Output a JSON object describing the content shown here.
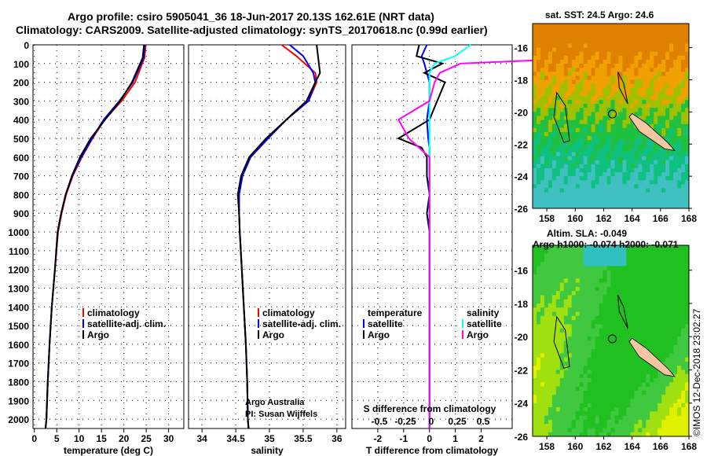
{
  "title": {
    "line1": "Argo profile: csiro 5905041_36 18-Jun-2017 20.13S 162.61E (NRT data)",
    "line2": "Climatology: CARS2009. Satellite-adjusted climatology: synTS_20170618.nc (0.99d earlier)"
  },
  "colors": {
    "climatology": "#ff0000",
    "satellite": "#0000ff",
    "argo": "#000000",
    "sal_satellite": "#00ffff",
    "sal_argo": "#ff00ff",
    "land": "#f5c6a0"
  },
  "chart_data": [
    {
      "type": "line",
      "name": "temperature",
      "xlabel": "temperature (deg C)",
      "xlim": [
        -0.3,
        33.4
      ],
      "ylim": [
        0,
        2050
      ],
      "yticks": [
        0,
        100,
        200,
        300,
        400,
        500,
        600,
        700,
        800,
        900,
        1000,
        1100,
        1200,
        1300,
        1400,
        1500,
        1600,
        1700,
        1800,
        1900,
        2000
      ],
      "xticks": [
        0,
        5,
        10,
        15,
        20,
        25,
        30
      ],
      "legend": [
        "climatology",
        "satellite-adj. clim.",
        "Argo"
      ],
      "depth": [
        0,
        70,
        200,
        300,
        400,
        500,
        600,
        700,
        800,
        900,
        1000,
        1200,
        1400,
        1600,
        1800,
        2000,
        2050
      ],
      "series": [
        {
          "name": "climatology",
          "values": [
            24.9,
            24.6,
            22.5,
            19.5,
            15.7,
            13,
            10.6,
            8.6,
            7.1,
            6.1,
            5.3,
            4.6,
            3.9,
            3.4,
            3.0,
            2.7,
            2.5
          ]
        },
        {
          "name": "satellite-adj. clim.",
          "values": [
            24.7,
            24.4,
            22,
            19,
            15.5,
            12.9,
            10.5,
            8.5,
            7.0,
            6.0,
            5.2,
            4.6,
            3.9,
            3.4,
            3.0,
            2.7,
            2.5
          ]
        },
        {
          "name": "Argo",
          "values": [
            24.5,
            24.2,
            21.8,
            19.2,
            15.8,
            12.6,
            10.2,
            8.4,
            7.0,
            6.0,
            5.2,
            4.6,
            3.9,
            3.4,
            3.0,
            2.7,
            2.5
          ]
        }
      ]
    },
    {
      "type": "line",
      "name": "salinity",
      "xlabel": "salinity",
      "xlim": [
        33.8,
        36.13
      ],
      "ylim": [
        0,
        2050
      ],
      "xticks": [
        34,
        34.5,
        35,
        35.5,
        36
      ],
      "legend": [
        "climatology",
        "satellite-adj. clim.",
        "Argo"
      ],
      "annotation": [
        "Argo Australia",
        "PI: Susan Wijffels"
      ],
      "depth": [
        0,
        60,
        150,
        200,
        300,
        400,
        500,
        600,
        700,
        800,
        900,
        1000,
        1200,
        1400,
        1600,
        1800,
        2000,
        2050
      ],
      "series": [
        {
          "name": "climatology",
          "values": [
            35.18,
            35.4,
            35.68,
            35.7,
            35.58,
            35.25,
            34.98,
            34.72,
            34.6,
            34.55,
            34.55,
            34.56,
            34.59,
            34.62,
            34.65,
            34.67,
            34.68,
            34.69
          ]
        },
        {
          "name": "satellite-adj. clim.",
          "values": [
            35.3,
            35.5,
            35.65,
            35.68,
            35.58,
            35.25,
            34.98,
            34.72,
            34.6,
            34.55,
            34.55,
            34.56,
            34.59,
            34.62,
            34.65,
            34.67,
            34.68,
            34.69
          ]
        },
        {
          "name": "Argo",
          "values": [
            35.7,
            35.72,
            35.75,
            35.68,
            35.55,
            35.25,
            34.95,
            34.7,
            34.58,
            34.53,
            34.55,
            34.56,
            34.59,
            34.62,
            34.65,
            34.67,
            34.68,
            34.69
          ]
        }
      ]
    },
    {
      "type": "line",
      "name": "differences",
      "xlabel": "T difference from climatology",
      "x2label": "S difference from climatology",
      "xlim": [
        -3,
        3.2
      ],
      "xticks": [
        -2,
        -1,
        0,
        1,
        2
      ],
      "x2ticks": [
        "-0.5",
        "-0.25",
        "0",
        "0.25",
        "0.5"
      ],
      "legend_t": [
        "temperature",
        "satellite",
        "Argo"
      ],
      "legend_s": [
        "salinity",
        "satellite",
        "Argo"
      ],
      "depth": [
        0,
        60,
        100,
        150,
        200,
        300,
        400,
        500,
        550,
        600,
        700,
        800,
        900,
        1000,
        1500,
        2000,
        2050
      ],
      "series": [
        {
          "name": "T satellite",
          "values": [
            -0.1,
            -0.3,
            -0.2,
            -0.1,
            0,
            0,
            -0.1,
            -0.05,
            0,
            0,
            0,
            0,
            0,
            0,
            0,
            0,
            0
          ]
        },
        {
          "name": "T Argo",
          "values": [
            -0.4,
            -0.5,
            0.5,
            -0.2,
            0.6,
            0.3,
            0,
            -1.2,
            -0.3,
            -0.1,
            -0.1,
            0,
            -0.1,
            0,
            0,
            0,
            0
          ]
        },
        {
          "name": "S satellite",
          "values": [
            0.4,
            0.25,
            0.05,
            0,
            0,
            0,
            0,
            0,
            0,
            0,
            0,
            0,
            0,
            0,
            0,
            0,
            0
          ]
        },
        {
          "name": "S Argo",
          "values": [
            2.2,
            2.0,
            0.3,
            0.1,
            0.05,
            0,
            -0.3,
            -0.2,
            -0.1,
            0,
            0,
            0,
            0,
            0,
            0,
            0,
            0
          ]
        }
      ]
    }
  ],
  "maps": {
    "top": {
      "title": "sat. SST: 24.5  Argo: 24.6",
      "lat_ticks": [
        "-16",
        "-18",
        "-20",
        "-22",
        "-24",
        "-26"
      ],
      "lon_ticks": [
        "158",
        "160",
        "162",
        "164",
        "166",
        "168"
      ]
    },
    "bottom": {
      "title1": "Altim. SLA: -0.049",
      "title2": "Argo h1000: -0.074 h2000: -0.071",
      "lat_ticks": [
        "-16",
        "-18",
        "-20",
        "-22",
        "-24",
        "-26"
      ],
      "lon_ticks": [
        "158",
        "160",
        "162",
        "164",
        "166",
        "168"
      ]
    }
  },
  "credit": "©IMOS 12-Dec-2018 23:02:27"
}
